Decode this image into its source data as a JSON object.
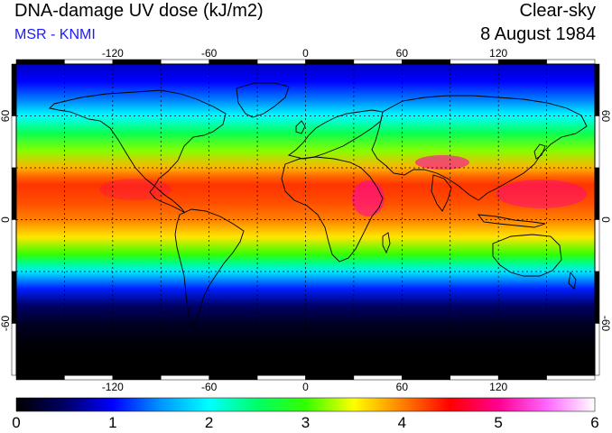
{
  "header": {
    "title": "DNA-damage UV dose (kJ/m2)",
    "subtitle": "MSR - KNMI",
    "sky": "Clear-sky",
    "date": "8 August 1984"
  },
  "map": {
    "lon_range": [
      -180,
      180
    ],
    "lat_range": [
      -90,
      90
    ],
    "lon_ticks": [
      "-120",
      "-60",
      "0",
      "60",
      "120"
    ],
    "lon_values": [
      -120,
      -60,
      0,
      60,
      120
    ],
    "lat_ticks": [
      "60",
      "0",
      "-60"
    ],
    "lat_values": [
      60,
      0,
      -60
    ],
    "grid_lon": [
      -150,
      -120,
      -90,
      -60,
      -30,
      0,
      30,
      60,
      90,
      120,
      150
    ],
    "grid_lat": [
      -60,
      -30,
      0,
      30,
      60
    ],
    "ocean_color": "#000000",
    "coastline_color": "#000000"
  },
  "colorbar": {
    "range": [
      0,
      6
    ],
    "labels": [
      "0",
      "1",
      "2",
      "3",
      "4",
      "5",
      "6"
    ],
    "stops": [
      {
        "v": 0,
        "c": "#000000"
      },
      {
        "v": 0.5,
        "c": "#000064"
      },
      {
        "v": 1,
        "c": "#0000ff"
      },
      {
        "v": 1.5,
        "c": "#0096ff"
      },
      {
        "v": 2,
        "c": "#00ffff"
      },
      {
        "v": 2.5,
        "c": "#00ff66"
      },
      {
        "v": 3,
        "c": "#33ff00"
      },
      {
        "v": 3.5,
        "c": "#ffff00"
      },
      {
        "v": 4,
        "c": "#ff8000"
      },
      {
        "v": 4.5,
        "c": "#ff0000"
      },
      {
        "v": 5,
        "c": "#ff0090"
      },
      {
        "v": 5.5,
        "c": "#ff66ff"
      },
      {
        "v": 6,
        "c": "#ffffff"
      }
    ]
  },
  "dose_by_latitude": {
    "lat": [
      90,
      80,
      70,
      60,
      50,
      40,
      30,
      25,
      20,
      10,
      0,
      -10,
      -20,
      -25,
      -30,
      -40,
      -50,
      -60,
      -70,
      -80,
      -90
    ],
    "dose": [
      0.8,
      1.0,
      1.4,
      2.0,
      2.6,
      3.2,
      3.8,
      4.1,
      4.3,
      4.2,
      4.0,
      3.6,
      3.0,
      2.4,
      1.9,
      1.1,
      0.5,
      0.2,
      0.05,
      0.0,
      0.0
    ]
  }
}
